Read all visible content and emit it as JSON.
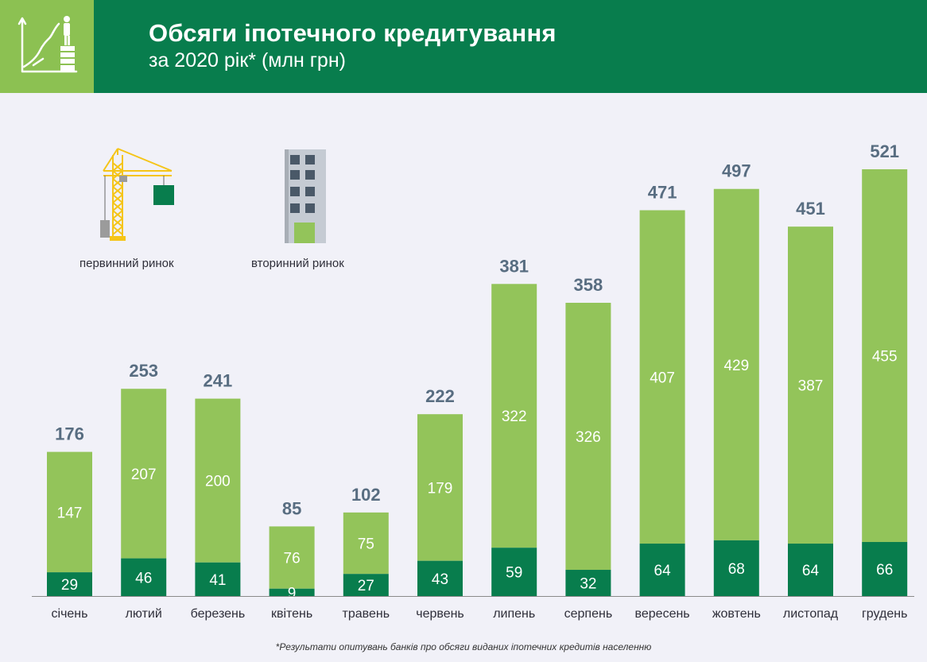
{
  "header": {
    "title": "Обсяги іпотечного кредитування",
    "subtitle": "за 2020 рік* (млн грн)",
    "icon": "growth-chart-person-icon"
  },
  "legend": {
    "primary_label": "первинний ринок",
    "primary_icon": "construction-crane-icon",
    "secondary_label": "вторинний ринок",
    "secondary_icon": "apartment-building-icon"
  },
  "footnote": "*Результати опитувань банків про обсяги виданих іпотечних кредитів населенню",
  "colors": {
    "header_bg": "#087d4d",
    "icon_bg": "#8cc152",
    "primary": "#087d4d",
    "secondary": "#93c45a",
    "total_label": "#586d81",
    "background": "#f1f1f8"
  },
  "chart_data": {
    "type": "bar",
    "stacked": true,
    "categories": [
      "січень",
      "лютий",
      "березень",
      "квітень",
      "травень",
      "червень",
      "липень",
      "серпень",
      "вересень",
      "жовтень",
      "листопад",
      "грудень"
    ],
    "series": [
      {
        "name": "первинний ринок",
        "values": [
          29,
          46,
          41,
          9,
          27,
          43,
          59,
          32,
          64,
          68,
          64,
          66
        ]
      },
      {
        "name": "вторинний ринок",
        "values": [
          147,
          207,
          200,
          76,
          75,
          179,
          322,
          326,
          407,
          429,
          387,
          455
        ]
      }
    ],
    "totals": [
      176,
      253,
      241,
      85,
      102,
      222,
      381,
      358,
      471,
      497,
      451,
      521
    ],
    "ylim": [
      0,
      521
    ],
    "grid": false,
    "legend_position": "top-left"
  }
}
